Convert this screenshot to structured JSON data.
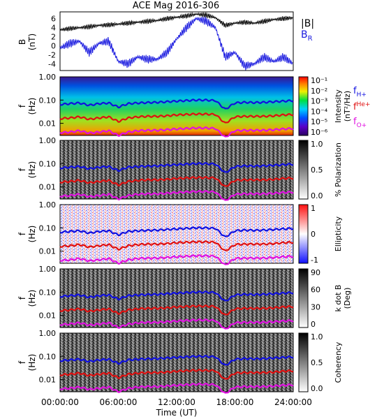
{
  "title": "ACE Mag 2016-306",
  "time_axis": {
    "label": "Time (UT)",
    "ticks": [
      "00:00:00",
      "06:00:00",
      "12:00:00",
      "18:00:00",
      "24:00:00"
    ],
    "range_hours": [
      0,
      24
    ]
  },
  "legends": {
    "b_total": "|B|",
    "b_r": "B",
    "b_r_sub": "R",
    "f_h": "f",
    "f_h_sub": "H+",
    "f_he": "f",
    "f_he_sub": "He+",
    "f_o": "f",
    "f_o_sub": "O+"
  },
  "colors": {
    "b_total": "#000000",
    "b_r": "#1a1adf",
    "f_h": "#1010e0",
    "f_he": "#e01010",
    "f_o": "#e010e0"
  },
  "panels": [
    {
      "id": "b-field",
      "ylabel": "B",
      "yunit": "(nT)",
      "ticks": [
        "6",
        "4",
        "2",
        "0",
        "-2",
        "-4"
      ],
      "ylim": [
        -5.5,
        7.5
      ]
    },
    {
      "id": "intensity",
      "ylabel": "f",
      "yunit": "(Hz)",
      "ticks": [
        "1.00",
        "0.10",
        "0.01"
      ],
      "colorbar": {
        "label": "Intensity",
        "unit": "(nT²/Hz)",
        "ticks": [
          "10⁻¹",
          "10⁻²",
          "10⁻³",
          "10⁻⁴",
          "10⁻⁵",
          "10⁻⁶"
        ],
        "scale": "rainbow"
      }
    },
    {
      "id": "polarization",
      "ylabel": "f",
      "yunit": "(Hz)",
      "ticks": [
        "1.00",
        "0.10",
        "0.01"
      ],
      "colorbar": {
        "label": "% Polarization",
        "unit": "",
        "ticks": [
          "1.0",
          "0.5",
          "0.0"
        ],
        "scale": "gray"
      }
    },
    {
      "id": "ellipticity",
      "ylabel": "f",
      "yunit": "(Hz)",
      "ticks": [
        "1.00",
        "0.10",
        "0.01"
      ],
      "colorbar": {
        "label": "Ellipticity",
        "unit": "",
        "ticks": [
          "1",
          "0",
          "-1"
        ],
        "scale": "bwr"
      }
    },
    {
      "id": "kdotb",
      "ylabel": "f",
      "yunit": "(Hz)",
      "ticks": [
        "1.00",
        "0.10",
        "0.01"
      ],
      "colorbar": {
        "label": "k dot B",
        "unit": "(Deg)",
        "ticks": [
          "90",
          "60",
          "30",
          "0"
        ],
        "scale": "gray"
      }
    },
    {
      "id": "coherency",
      "ylabel": "f",
      "yunit": "(Hz)",
      "ticks": [
        "1.00",
        "0.10",
        "0.01"
      ],
      "colorbar": {
        "label": "Coherency",
        "unit": "",
        "ticks": [
          "1.0",
          "0.5",
          "0.0"
        ],
        "scale": "gray"
      }
    }
  ],
  "chart_data": {
    "type": "line",
    "title": "ACE Mag 2016-306",
    "xlabel": "Time (UT)",
    "ylabel": "B (nT)",
    "ylim": [
      -5.5,
      7.5
    ],
    "x_hours": [
      0,
      1,
      2,
      3,
      4,
      5,
      6,
      7,
      8,
      9,
      10,
      11,
      12,
      13,
      14,
      15,
      16,
      17,
      18,
      19,
      20,
      21,
      22,
      23,
      24
    ],
    "series": [
      {
        "name": "|B|",
        "values": [
          3.5,
          3.8,
          4.0,
          4.2,
          4.5,
          4.6,
          4.8,
          5.0,
          5.2,
          5.4,
          5.6,
          6.0,
          6.3,
          6.6,
          7.0,
          6.8,
          6.2,
          4.5,
          5.0,
          5.2,
          5.0,
          5.4,
          5.8,
          6.0,
          6.2
        ]
      },
      {
        "name": "BR",
        "values": [
          -0.5,
          0.5,
          1.0,
          -1.5,
          0.5,
          1.0,
          -3.5,
          -4.0,
          -2.5,
          -3.0,
          -3.0,
          -1.5,
          1.5,
          4.0,
          6.0,
          5.5,
          4.0,
          -2.5,
          -1.5,
          -4.5,
          -4.0,
          -2.5,
          -3.5,
          -2.5,
          -4.0
        ]
      }
    ],
    "frequency_lines": {
      "y_axis": "f (Hz), log scale",
      "ylim": [
        0.003,
        1.0
      ],
      "f_H+": [
        0.065,
        0.07,
        0.075,
        0.06,
        0.07,
        0.075,
        0.05,
        0.07,
        0.075,
        0.078,
        0.08,
        0.085,
        0.09,
        0.095,
        0.1,
        0.1,
        0.095,
        0.04,
        0.075,
        0.08,
        0.078,
        0.08,
        0.085,
        0.09,
        0.095
      ],
      "f_He+": [
        0.016,
        0.017,
        0.019,
        0.015,
        0.017,
        0.019,
        0.012,
        0.017,
        0.019,
        0.02,
        0.02,
        0.021,
        0.023,
        0.024,
        0.025,
        0.025,
        0.024,
        0.01,
        0.019,
        0.02,
        0.02,
        0.02,
        0.021,
        0.023,
        0.024
      ],
      "f_O+": [
        0.004,
        0.0042,
        0.0048,
        0.0038,
        0.0042,
        0.0048,
        0.003,
        0.0042,
        0.0048,
        0.005,
        0.005,
        0.0053,
        0.0057,
        0.006,
        0.0063,
        0.0063,
        0.006,
        0.0025,
        0.0048,
        0.005,
        0.005,
        0.005,
        0.0053,
        0.0057,
        0.006
      ]
    }
  }
}
